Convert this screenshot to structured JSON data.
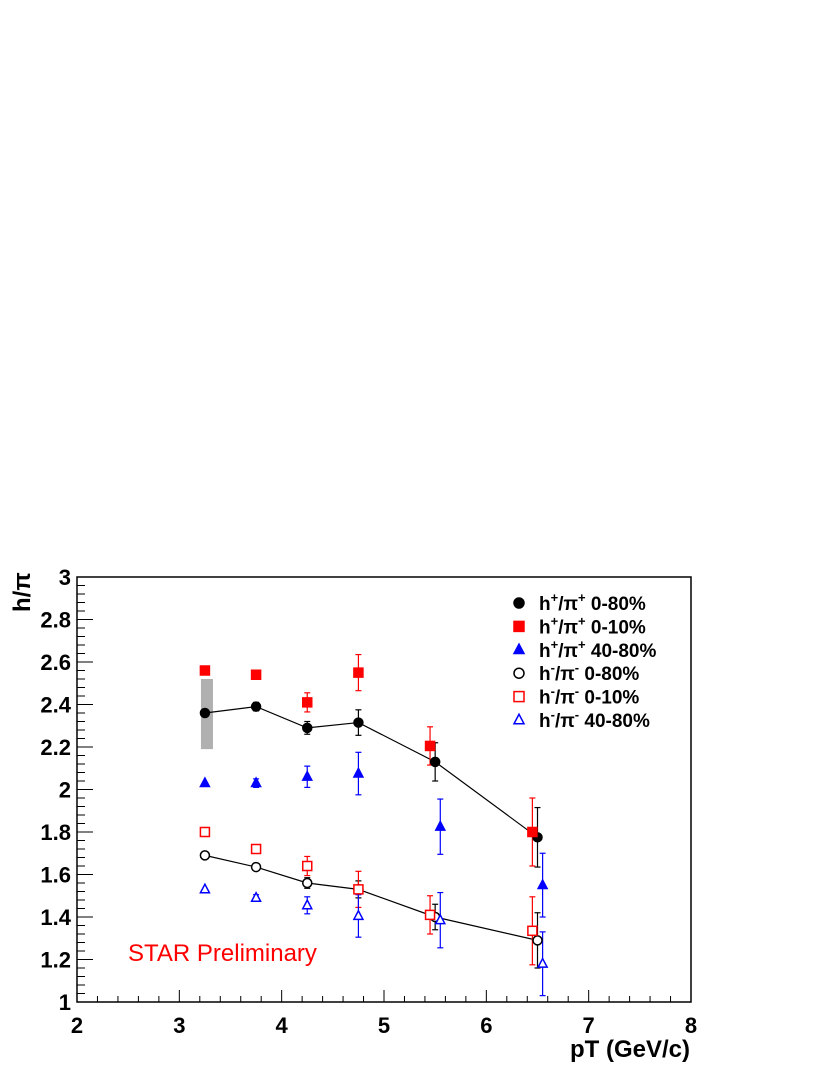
{
  "chart_data": {
    "type": "scatter",
    "title": "",
    "xlabel": "pT (GeV/c)",
    "ylabel": "h/π",
    "xlim": [
      2,
      8
    ],
    "ylim": [
      1,
      3
    ],
    "x_ticks": [
      "2",
      "3",
      "4",
      "5",
      "6",
      "7",
      "8"
    ],
    "y_ticks": [
      "1",
      "1.2",
      "1.4",
      "1.6",
      "1.8",
      "2",
      "2.2",
      "2.4",
      "2.6",
      "2.8",
      "3"
    ],
    "grid": false,
    "legend_position": "top-right",
    "annotation": {
      "text": "STAR Preliminary",
      "color": "#ff0000"
    },
    "systematic_band": {
      "x": 3.27,
      "y_low": 2.19,
      "y_high": 2.52,
      "color": "#b0b0b0"
    },
    "series": [
      {
        "legend_base": "h",
        "legend_charge": "+",
        "legend_sep": "/π",
        "legend_charge2": "+",
        "legend_cent": " 0-80%",
        "color": "#000000",
        "marker": "circle",
        "filled": true,
        "line": true,
        "x": [
          3.25,
          3.75,
          4.25,
          4.75,
          5.5,
          6.5
        ],
        "y": [
          2.36,
          2.39,
          2.29,
          2.315,
          2.13,
          1.775
        ],
        "err": [
          0.0,
          0.02,
          0.03,
          0.06,
          0.09,
          0.14
        ]
      },
      {
        "legend_base": "h",
        "legend_charge": "+",
        "legend_sep": "/π",
        "legend_charge2": "+",
        "legend_cent": " 0-10%",
        "color": "#ff0000",
        "marker": "square",
        "filled": true,
        "line": false,
        "x": [
          3.25,
          3.75,
          4.25,
          4.75,
          5.45,
          6.45
        ],
        "y": [
          2.56,
          2.54,
          2.41,
          2.55,
          2.205,
          1.8
        ],
        "err": [
          0.0,
          0.02,
          0.045,
          0.085,
          0.09,
          0.16
        ]
      },
      {
        "legend_base": "h",
        "legend_charge": "+",
        "legend_sep": "/π",
        "legend_charge2": "+",
        "legend_cent": " 40-80%",
        "color": "#0000ff",
        "marker": "triangle",
        "filled": true,
        "line": false,
        "x": [
          3.25,
          3.75,
          4.25,
          4.75,
          5.55,
          6.55
        ],
        "y": [
          2.03,
          2.03,
          2.06,
          2.075,
          1.825,
          1.55
        ],
        "err": [
          0.0,
          0.02,
          0.05,
          0.1,
          0.13,
          0.15
        ]
      },
      {
        "legend_base": "h",
        "legend_charge": "-",
        "legend_sep": "/π",
        "legend_charge2": "-",
        "legend_cent": " 0-80%",
        "color": "#000000",
        "marker": "circle",
        "filled": false,
        "line": true,
        "x": [
          3.25,
          3.75,
          4.25,
          4.75,
          5.5,
          6.5
        ],
        "y": [
          1.69,
          1.635,
          1.56,
          1.53,
          1.4,
          1.29
        ],
        "err": [
          0.0,
          0.015,
          0.025,
          0.04,
          0.06,
          0.13
        ]
      },
      {
        "legend_base": "h",
        "legend_charge": "-",
        "legend_sep": "/π",
        "legend_charge2": "-",
        "legend_cent": " 0-10%",
        "color": "#ff0000",
        "marker": "square",
        "filled": false,
        "line": false,
        "x": [
          3.25,
          3.75,
          4.25,
          4.75,
          5.45,
          6.45
        ],
        "y": [
          1.8,
          1.72,
          1.64,
          1.53,
          1.41,
          1.335
        ],
        "err": [
          0.0,
          0.02,
          0.045,
          0.085,
          0.09,
          0.16
        ]
      },
      {
        "legend_base": "h",
        "legend_charge": "-",
        "legend_sep": "/π",
        "legend_charge2": "-",
        "legend_cent": " 40-80%",
        "color": "#0000ff",
        "marker": "triangle",
        "filled": false,
        "line": false,
        "x": [
          3.25,
          3.75,
          4.25,
          4.75,
          5.55,
          6.55
        ],
        "y": [
          1.53,
          1.49,
          1.455,
          1.405,
          1.385,
          1.18
        ],
        "err": [
          0.0,
          0.015,
          0.04,
          0.1,
          0.13,
          0.15
        ]
      }
    ]
  }
}
